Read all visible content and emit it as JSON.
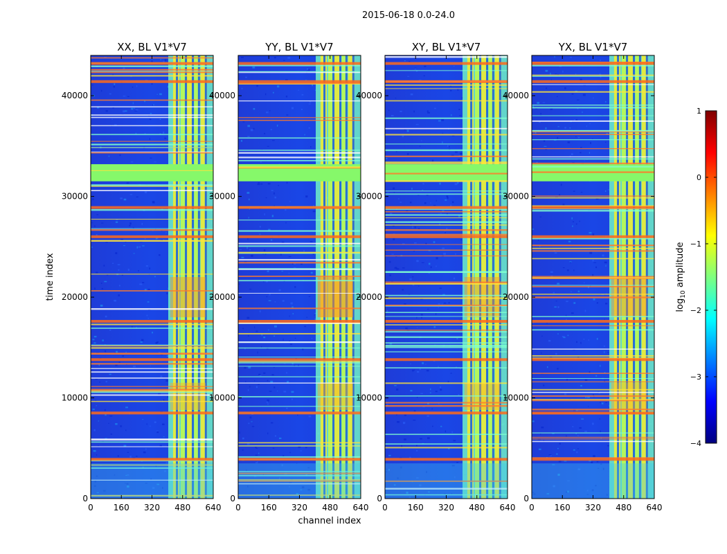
{
  "figure": {
    "suptitle": "2015-06-18 0.0-24.0",
    "xlabel": "channel index",
    "ylabel": "time index"
  },
  "colorbar": {
    "label_main": "log",
    "label_sub": "10",
    "label_tail": " amplitude",
    "min": -4,
    "max": 1,
    "ticks": [
      1,
      0,
      -1,
      -2,
      -3,
      -4
    ],
    "tick_labels": [
      "1",
      "0",
      "−1",
      "−2",
      "−3",
      "−4"
    ],
    "colormap": "jet",
    "colors": [
      "#00007f",
      "#0000ff",
      "#007fff",
      "#00ffff",
      "#7fff7f",
      "#ffff00",
      "#ff7f00",
      "#ff0000",
      "#7f0000"
    ]
  },
  "chart_data": {
    "type": "heatmap",
    "panels": [
      {
        "title": "XX, BL V1*V7"
      },
      {
        "title": "YY, BL V1*V7"
      },
      {
        "title": "XY, BL V1*V7"
      },
      {
        "title": "YX, BL V1*V7"
      }
    ],
    "x_range": [
      0,
      640
    ],
    "y_range": [
      0,
      44000
    ],
    "x_ticks": [
      0,
      160,
      320,
      480,
      640
    ],
    "x_tick_labels": [
      "0",
      "160",
      "320",
      "480",
      "640"
    ],
    "y_ticks": [
      0,
      10000,
      20000,
      30000,
      40000
    ],
    "y_tick_labels": [
      "0",
      "10000",
      "20000",
      "30000",
      "40000"
    ],
    "rfi_band_channels": [
      405,
      640
    ],
    "flagged_time_block": [
      31500,
      33200
    ],
    "hot_row_times": [
      3900,
      8500,
      13800,
      17600,
      26000,
      28900,
      41400,
      43200
    ]
  }
}
